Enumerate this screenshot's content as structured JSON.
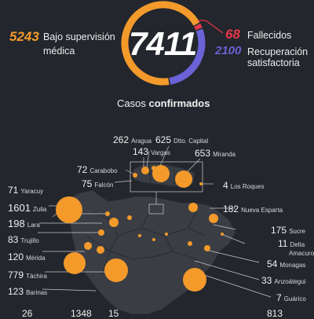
{
  "summary": {
    "total_confirmed": "7411",
    "supervision": {
      "count": "5243",
      "label_line1": "Bajo supervisión",
      "label_line2": "médica"
    },
    "deceased": {
      "count": "68",
      "label": "Fallecidos"
    },
    "recovered": {
      "count": "2100",
      "label_line1": "Recuperación",
      "label_line2": "satisfactoria"
    },
    "ring_shares": {
      "supervision": 0.7075,
      "deceased": 0.0092,
      "recovered": 0.2833
    },
    "colors": {
      "supervision": "#f39a2b",
      "deceased": "#e8384a",
      "recovered": "#6a62d6"
    }
  },
  "section": {
    "title_regular": "Casos ",
    "title_bold": "confirmados"
  },
  "states": [
    {
      "id": "aragua",
      "count": "262",
      "name": "Aragua"
    },
    {
      "id": "capital",
      "count": "625",
      "name": "Dtto. Capital"
    },
    {
      "id": "vargas",
      "count": "143",
      "name": "Vargas"
    },
    {
      "id": "miranda",
      "count": "653",
      "name": "Miranda"
    },
    {
      "id": "carabobo",
      "count": "72",
      "name": "Carabobo"
    },
    {
      "id": "falcon",
      "count": "75",
      "name": "Falcón"
    },
    {
      "id": "losroques",
      "count": "4",
      "name": "Los Roques"
    },
    {
      "id": "yaracuy",
      "count": "71",
      "name": "Yaracuy"
    },
    {
      "id": "zulia",
      "count": "1601",
      "name": "Zulia"
    },
    {
      "id": "lara",
      "count": "198",
      "name": "Lara"
    },
    {
      "id": "trujillo",
      "count": "83",
      "name": "Trujillo"
    },
    {
      "id": "merida",
      "count": "120",
      "name": "Mérida"
    },
    {
      "id": "tachira",
      "count": "779",
      "name": "Táchira"
    },
    {
      "id": "barinas",
      "count": "123",
      "name": "Barinas"
    },
    {
      "id": "nuevaesparta",
      "count": "182",
      "name": "Nueva Esparta"
    },
    {
      "id": "sucre",
      "count": "175",
      "name": "Sucre"
    },
    {
      "id": "deltaamacuro",
      "count": "11",
      "name_line1": "Delta",
      "name_line2": "Amacuro"
    },
    {
      "id": "monagas",
      "count": "54",
      "name": "Monagas"
    },
    {
      "id": "anzoategui",
      "count": "33",
      "name": "Anzoátegui"
    },
    {
      "id": "guarico",
      "count": "7",
      "name": "Guárico"
    }
  ],
  "partial_numbers": {
    "bottom_left": "26",
    "bottom_mid1": "1348",
    "bottom_mid2": "15",
    "bottom_right": "813"
  }
}
